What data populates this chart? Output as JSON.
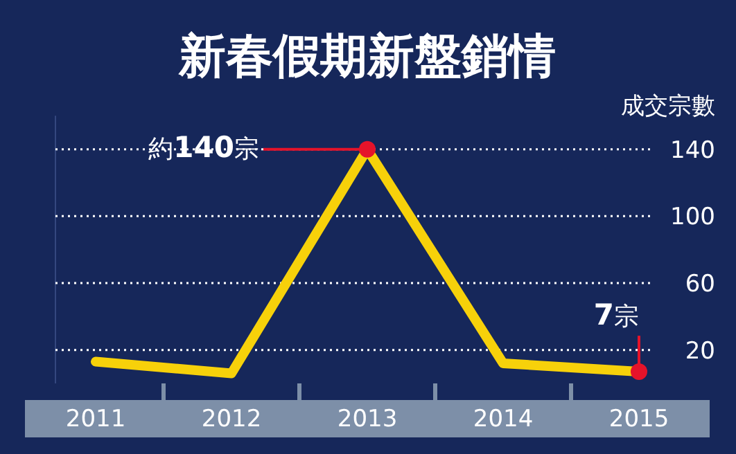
{
  "chart_data": {
    "type": "line",
    "title": "新春假期新盤銷情",
    "ylabel": "成交宗數",
    "categories": [
      "2011",
      "2012",
      "2013",
      "2014",
      "2015"
    ],
    "series": [
      {
        "color": "#f7d10a",
        "values": [
          13,
          6,
          140,
          12,
          7
        ]
      }
    ],
    "ylim": [
      0,
      160
    ],
    "yticks": [
      20,
      60,
      100,
      140
    ],
    "grid": "y",
    "marker": "none",
    "line_style": "solid",
    "annotations": [
      {
        "text": "約140宗",
        "x": "2013",
        "y": 140
      },
      {
        "text": "7宗",
        "x": "2015",
        "y": 7
      }
    ]
  }
}
